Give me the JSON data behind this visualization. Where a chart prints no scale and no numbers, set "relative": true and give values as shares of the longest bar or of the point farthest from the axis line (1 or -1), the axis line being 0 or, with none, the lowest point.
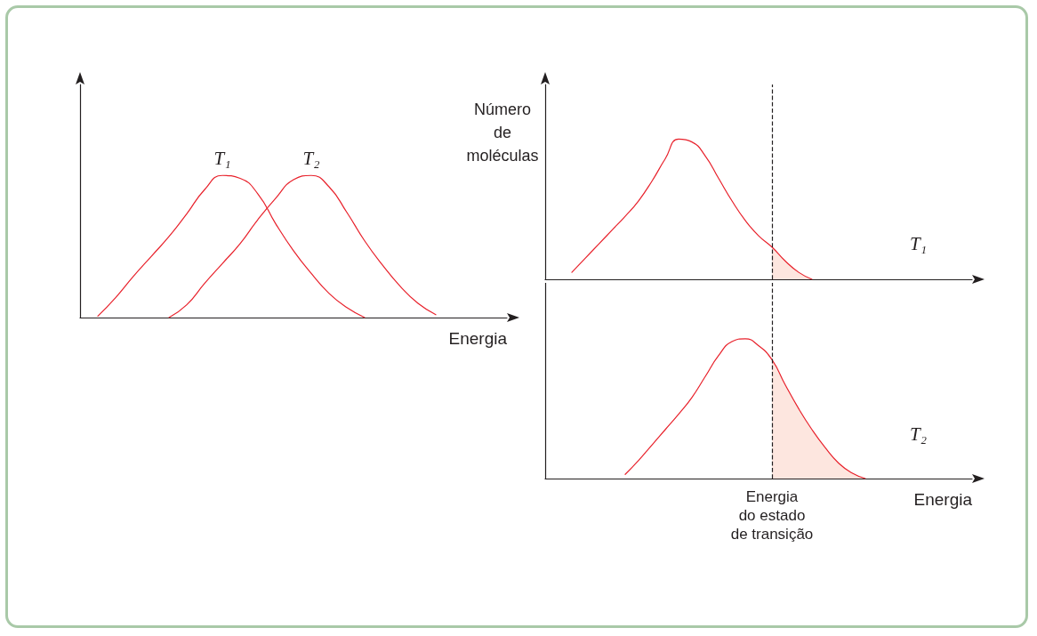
{
  "chart_data": [
    {
      "type": "line",
      "relative": true,
      "xlabel": "Energia",
      "legend": false,
      "grid": false,
      "marker": "none",
      "categories": [
        null,
        null,
        null,
        null,
        null,
        null,
        null,
        null,
        null,
        null,
        null,
        null,
        null,
        null,
        null,
        null,
        null,
        null,
        null,
        null,
        null,
        null,
        null,
        null,
        null
      ],
      "series": [
        {
          "name": "T₁",
          "color": "#e8212b",
          "values": [
            null,
            0.01,
            0.14,
            0.29,
            0.43,
            0.57,
            0.73,
            0.9,
            1,
            0.98,
            0.87,
            0.66,
            0.47,
            0.31,
            0.17,
            0.07,
            0,
            null,
            null,
            null,
            null,
            null,
            null,
            null,
            null
          ]
        },
        {
          "name": "T₂",
          "color": "#e8212b",
          "values": [
            null,
            null,
            null,
            null,
            null,
            0,
            0.09,
            0.24,
            0.38,
            0.52,
            0.69,
            0.84,
            0.97,
            1,
            0.92,
            0.74,
            0.54,
            0.37,
            0.22,
            0.1,
            0.02,
            null,
            null,
            null,
            null
          ]
        }
      ]
    },
    {
      "type": "line",
      "relative": true,
      "ylabel": "Número\nde\nmoléculas",
      "legend": false,
      "grid": false,
      "tick_labels": false,
      "categories": [
        null,
        null,
        null,
        null,
        null,
        null,
        null,
        null,
        null,
        null,
        null,
        null,
        null,
        null,
        null,
        null,
        null,
        null,
        null,
        null,
        null,
        null,
        null,
        null,
        null,
        null,
        null,
        null,
        null,
        null,
        null,
        null,
        null
      ],
      "series": [
        {
          "name": "T₁",
          "color": "#e8212b",
          "values": [
            null,
            null,
            0.05,
            0.15,
            0.25,
            0.35,
            0.45,
            0.56,
            0.7,
            0.86,
            1,
            0.98,
            0.88,
            0.72,
            0.56,
            0.42,
            0.31,
            0.23,
            0.13,
            0.05,
            0,
            null,
            null,
            null,
            null,
            null,
            null,
            null,
            null,
            null,
            null,
            null,
            null
          ]
        },
        {
          "type": "area",
          "color": "#fde6df",
          "values": [
            null,
            null,
            null,
            null,
            null,
            null,
            null,
            null,
            null,
            null,
            null,
            null,
            null,
            null,
            null,
            null,
            null,
            0.23,
            0.13,
            0.05,
            0,
            null,
            null,
            null,
            null,
            null,
            null,
            null,
            null,
            null,
            null,
            null,
            null
          ]
        }
      ],
      "marker": "none"
    },
    {
      "type": "line",
      "relative": true,
      "xlabel": "Energia",
      "legend": false,
      "grid": false,
      "marker": "none",
      "tick_labels": "x",
      "categories": [
        null,
        null,
        null,
        null,
        null,
        null,
        null,
        null,
        null,
        null,
        null,
        null,
        null,
        null,
        null,
        null,
        null,
        null,
        null,
        null,
        null,
        null,
        null,
        null,
        null,
        null,
        null,
        null,
        null,
        null,
        null,
        null,
        null
      ],
      "series": [
        {
          "name": "T₂",
          "color": "#e8212b",
          "values": [
            null,
            null,
            null,
            null,
            null,
            null,
            0.03,
            0.13,
            0.24,
            0.35,
            0.46,
            0.58,
            0.73,
            0.88,
            0.98,
            1,
            0.95,
            0.85,
            0.67,
            0.5,
            0.35,
            0.22,
            0.11,
            0.04,
            0,
            null,
            null,
            null,
            null,
            null,
            null,
            null,
            null
          ]
        },
        {
          "type": "area",
          "color": "#fde6df",
          "values": [
            null,
            null,
            null,
            null,
            null,
            null,
            null,
            null,
            null,
            null,
            null,
            null,
            null,
            null,
            null,
            null,
            null,
            0.85,
            0.67,
            0.5,
            0.35,
            0.22,
            0.11,
            0.04,
            0,
            null,
            null,
            null,
            null,
            null,
            null,
            null,
            null
          ]
        }
      ],
      "annotations": [
        "Energia\ndo estado\nde transição"
      ]
    }
  ]
}
